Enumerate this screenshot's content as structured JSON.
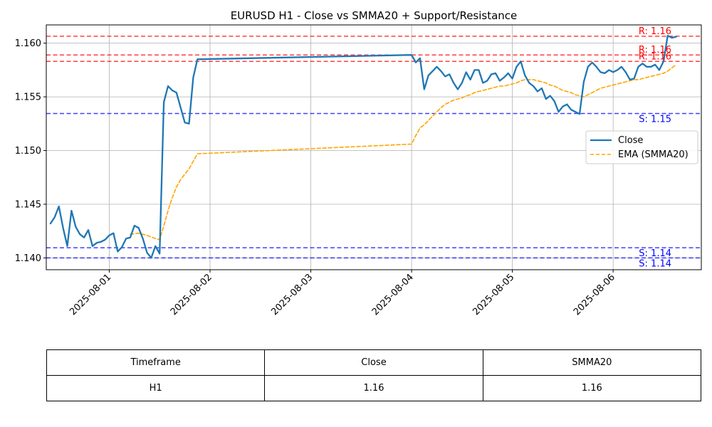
{
  "chart_data": {
    "type": "line",
    "title": "EURUSD H1 - Close vs SMMA20 + Support/Resistance",
    "xlabel": "",
    "ylabel": "",
    "x_range": [
      "2025-07-31 09:00",
      "2025-08-06 21:00"
    ],
    "ylim": [
      1.1389,
      1.1617
    ],
    "x_ticks": [
      "2025-08-01",
      "2025-08-02",
      "2025-08-03",
      "2025-08-04",
      "2025-08-05",
      "2025-08-06"
    ],
    "y_ticks": [
      "1.140",
      "1.145",
      "1.150",
      "1.155",
      "1.160"
    ],
    "grid": true,
    "legend_position": "center-right",
    "series": [
      {
        "name": "Close",
        "color": "#1f77b4",
        "style": "solid",
        "points": [
          [
            "2025-07-31 10:00",
            1.1432
          ],
          [
            "2025-07-31 11:00",
            1.1438
          ],
          [
            "2025-07-31 12:00",
            1.1448
          ],
          [
            "2025-07-31 13:00",
            1.1428
          ],
          [
            "2025-07-31 14:00",
            1.1411
          ],
          [
            "2025-07-31 15:00",
            1.1444
          ],
          [
            "2025-07-31 16:00",
            1.1429
          ],
          [
            "2025-07-31 17:00",
            1.1422
          ],
          [
            "2025-07-31 18:00",
            1.1419
          ],
          [
            "2025-07-31 19:00",
            1.1426
          ],
          [
            "2025-07-31 20:00",
            1.1411
          ],
          [
            "2025-07-31 21:00",
            1.1414
          ],
          [
            "2025-07-31 22:00",
            1.1415
          ],
          [
            "2025-07-31 23:00",
            1.1417
          ],
          [
            "2025-08-01 00:00",
            1.1421
          ],
          [
            "2025-08-01 01:00",
            1.1423
          ],
          [
            "2025-08-01 02:00",
            1.1406
          ],
          [
            "2025-08-01 03:00",
            1.141
          ],
          [
            "2025-08-01 04:00",
            1.1418
          ],
          [
            "2025-08-01 05:00",
            1.1419
          ],
          [
            "2025-08-01 06:00",
            1.143
          ],
          [
            "2025-08-01 07:00",
            1.1428
          ],
          [
            "2025-08-01 08:00",
            1.1418
          ],
          [
            "2025-08-01 09:00",
            1.1405
          ],
          [
            "2025-08-01 10:00",
            1.14
          ],
          [
            "2025-08-01 11:00",
            1.1411
          ],
          [
            "2025-08-01 12:00",
            1.1404
          ],
          [
            "2025-08-01 13:00",
            1.1545
          ],
          [
            "2025-08-01 14:00",
            1.156
          ],
          [
            "2025-08-01 15:00",
            1.1556
          ],
          [
            "2025-08-01 16:00",
            1.1554
          ],
          [
            "2025-08-01 17:00",
            1.154
          ],
          [
            "2025-08-01 18:00",
            1.1526
          ],
          [
            "2025-08-01 19:00",
            1.1525
          ],
          [
            "2025-08-01 20:00",
            1.1568
          ],
          [
            "2025-08-01 21:00",
            1.1585
          ],
          [
            "2025-08-04 00:00",
            1.1589
          ],
          [
            "2025-08-04 01:00",
            1.1582
          ],
          [
            "2025-08-04 02:00",
            1.1586
          ],
          [
            "2025-08-04 03:00",
            1.1557
          ],
          [
            "2025-08-04 04:00",
            1.157
          ],
          [
            "2025-08-04 05:00",
            1.1574
          ],
          [
            "2025-08-04 06:00",
            1.1578
          ],
          [
            "2025-08-04 07:00",
            1.1574
          ],
          [
            "2025-08-04 08:00",
            1.1569
          ],
          [
            "2025-08-04 09:00",
            1.1571
          ],
          [
            "2025-08-04 10:00",
            1.1563
          ],
          [
            "2025-08-04 11:00",
            1.1557
          ],
          [
            "2025-08-04 12:00",
            1.1563
          ],
          [
            "2025-08-04 13:00",
            1.1573
          ],
          [
            "2025-08-04 14:00",
            1.1566
          ],
          [
            "2025-08-04 15:00",
            1.1575
          ],
          [
            "2025-08-04 16:00",
            1.1575
          ],
          [
            "2025-08-04 17:00",
            1.1563
          ],
          [
            "2025-08-04 18:00",
            1.1565
          ],
          [
            "2025-08-04 19:00",
            1.1571
          ],
          [
            "2025-08-04 20:00",
            1.1572
          ],
          [
            "2025-08-04 21:00",
            1.1565
          ],
          [
            "2025-08-04 22:00",
            1.1568
          ],
          [
            "2025-08-04 23:00",
            1.1572
          ],
          [
            "2025-08-05 00:00",
            1.1567
          ],
          [
            "2025-08-05 01:00",
            1.1578
          ],
          [
            "2025-08-05 02:00",
            1.1583
          ],
          [
            "2025-08-05 03:00",
            1.157
          ],
          [
            "2025-08-05 04:00",
            1.1563
          ],
          [
            "2025-08-05 05:00",
            1.156
          ],
          [
            "2025-08-05 06:00",
            1.1555
          ],
          [
            "2025-08-05 07:00",
            1.1558
          ],
          [
            "2025-08-05 08:00",
            1.1548
          ],
          [
            "2025-08-05 09:00",
            1.1551
          ],
          [
            "2025-08-05 10:00",
            1.1546
          ],
          [
            "2025-08-05 11:00",
            1.1536
          ],
          [
            "2025-08-05 12:00",
            1.1541
          ],
          [
            "2025-08-05 13:00",
            1.1543
          ],
          [
            "2025-08-05 14:00",
            1.1538
          ],
          [
            "2025-08-05 15:00",
            1.1536
          ],
          [
            "2025-08-05 16:00",
            1.1534
          ],
          [
            "2025-08-05 17:00",
            1.1564
          ],
          [
            "2025-08-05 18:00",
            1.1578
          ],
          [
            "2025-08-05 19:00",
            1.1582
          ],
          [
            "2025-08-05 20:00",
            1.1578
          ],
          [
            "2025-08-05 21:00",
            1.1573
          ],
          [
            "2025-08-05 22:00",
            1.1572
          ],
          [
            "2025-08-05 23:00",
            1.1575
          ],
          [
            "2025-08-06 00:00",
            1.1573
          ],
          [
            "2025-08-06 01:00",
            1.1575
          ],
          [
            "2025-08-06 02:00",
            1.1578
          ],
          [
            "2025-08-06 03:00",
            1.1573
          ],
          [
            "2025-08-06 04:00",
            1.1566
          ],
          [
            "2025-08-06 05:00",
            1.1567
          ],
          [
            "2025-08-06 06:00",
            1.1578
          ],
          [
            "2025-08-06 07:00",
            1.1581
          ],
          [
            "2025-08-06 08:00",
            1.1578
          ],
          [
            "2025-08-06 09:00",
            1.1578
          ],
          [
            "2025-08-06 10:00",
            1.158
          ],
          [
            "2025-08-06 11:00",
            1.1575
          ],
          [
            "2025-08-06 12:00",
            1.1583
          ],
          [
            "2025-08-06 13:00",
            1.1607
          ],
          [
            "2025-08-06 14:00",
            1.1605
          ],
          [
            "2025-08-06 15:00",
            1.1606
          ]
        ]
      },
      {
        "name": "EMA (SMMA20)",
        "color": "#ffa500",
        "style": "dashed",
        "points": [
          [
            "2025-08-01 05:00",
            1.1422
          ],
          [
            "2025-08-01 07:00",
            1.1423
          ],
          [
            "2025-08-01 09:00",
            1.1421
          ],
          [
            "2025-08-01 11:00",
            1.1418
          ],
          [
            "2025-08-01 12:00",
            1.1417
          ],
          [
            "2025-08-01 13:00",
            1.143
          ],
          [
            "2025-08-01 14:00",
            1.1444
          ],
          [
            "2025-08-01 15:00",
            1.1456
          ],
          [
            "2025-08-01 16:00",
            1.1466
          ],
          [
            "2025-08-01 17:00",
            1.1473
          ],
          [
            "2025-08-01 18:00",
            1.1478
          ],
          [
            "2025-08-01 19:00",
            1.1483
          ],
          [
            "2025-08-01 20:00",
            1.149
          ],
          [
            "2025-08-01 21:00",
            1.1497
          ],
          [
            "2025-08-04 00:00",
            1.1506
          ],
          [
            "2025-08-04 01:00",
            1.1514
          ],
          [
            "2025-08-04 02:00",
            1.1521
          ],
          [
            "2025-08-04 03:00",
            1.1524
          ],
          [
            "2025-08-04 04:00",
            1.1528
          ],
          [
            "2025-08-04 05:00",
            1.1532
          ],
          [
            "2025-08-04 06:00",
            1.1536
          ],
          [
            "2025-08-04 07:00",
            1.154
          ],
          [
            "2025-08-04 08:00",
            1.1543
          ],
          [
            "2025-08-04 09:00",
            1.1545
          ],
          [
            "2025-08-04 10:00",
            1.1547
          ],
          [
            "2025-08-04 11:00",
            1.1548
          ],
          [
            "2025-08-04 12:00",
            1.1549
          ],
          [
            "2025-08-04 13:00",
            1.1551
          ],
          [
            "2025-08-04 14:00",
            1.1552
          ],
          [
            "2025-08-04 15:00",
            1.1554
          ],
          [
            "2025-08-04 16:00",
            1.1555
          ],
          [
            "2025-08-04 17:00",
            1.1556
          ],
          [
            "2025-08-04 18:00",
            1.1557
          ],
          [
            "2025-08-04 19:00",
            1.1558
          ],
          [
            "2025-08-04 20:00",
            1.1559
          ],
          [
            "2025-08-04 21:00",
            1.156
          ],
          [
            "2025-08-04 22:00",
            1.156
          ],
          [
            "2025-08-04 23:00",
            1.1561
          ],
          [
            "2025-08-05 00:00",
            1.1562
          ],
          [
            "2025-08-05 01:00",
            1.1563
          ],
          [
            "2025-08-05 02:00",
            1.1565
          ],
          [
            "2025-08-05 03:00",
            1.1566
          ],
          [
            "2025-08-05 04:00",
            1.1566
          ],
          [
            "2025-08-05 05:00",
            1.1566
          ],
          [
            "2025-08-05 06:00",
            1.1565
          ],
          [
            "2025-08-05 07:00",
            1.1564
          ],
          [
            "2025-08-05 08:00",
            1.1563
          ],
          [
            "2025-08-05 09:00",
            1.1561
          ],
          [
            "2025-08-05 10:00",
            1.156
          ],
          [
            "2025-08-05 11:00",
            1.1558
          ],
          [
            "2025-08-05 12:00",
            1.1556
          ],
          [
            "2025-08-05 13:00",
            1.1555
          ],
          [
            "2025-08-05 14:00",
            1.1554
          ],
          [
            "2025-08-05 15:00",
            1.1552
          ],
          [
            "2025-08-05 16:00",
            1.1551
          ],
          [
            "2025-08-05 17:00",
            1.155
          ],
          [
            "2025-08-05 18:00",
            1.1552
          ],
          [
            "2025-08-05 19:00",
            1.1554
          ],
          [
            "2025-08-05 20:00",
            1.1556
          ],
          [
            "2025-08-05 21:00",
            1.1558
          ],
          [
            "2025-08-05 22:00",
            1.1559
          ],
          [
            "2025-08-05 23:00",
            1.156
          ],
          [
            "2025-08-06 00:00",
            1.1561
          ],
          [
            "2025-08-06 01:00",
            1.1562
          ],
          [
            "2025-08-06 02:00",
            1.1563
          ],
          [
            "2025-08-06 03:00",
            1.1564
          ],
          [
            "2025-08-06 04:00",
            1.1565
          ],
          [
            "2025-08-06 05:00",
            1.1566
          ],
          [
            "2025-08-06 06:00",
            1.1566
          ],
          [
            "2025-08-06 07:00",
            1.1567
          ],
          [
            "2025-08-06 08:00",
            1.1568
          ],
          [
            "2025-08-06 09:00",
            1.1569
          ],
          [
            "2025-08-06 10:00",
            1.157
          ],
          [
            "2025-08-06 11:00",
            1.1571
          ],
          [
            "2025-08-06 12:00",
            1.1572
          ],
          [
            "2025-08-06 13:00",
            1.1574
          ],
          [
            "2025-08-06 14:00",
            1.1577
          ],
          [
            "2025-08-06 15:00",
            1.158
          ]
        ]
      }
    ],
    "levels": [
      {
        "kind": "resistance",
        "value": 1.16065,
        "label": "R: 1.16",
        "color": "#ff0000"
      },
      {
        "kind": "resistance",
        "value": 1.1589,
        "label": "R: 1.16",
        "color": "#ff0000"
      },
      {
        "kind": "resistance",
        "value": 1.1583,
        "label": "R: 1.16",
        "color": "#ff0000"
      },
      {
        "kind": "support",
        "value": 1.15345,
        "label": "S: 1.15",
        "color": "#0000ff"
      },
      {
        "kind": "support",
        "value": 1.14095,
        "label": "S: 1.14",
        "color": "#0000ff"
      },
      {
        "kind": "support",
        "value": 1.14,
        "label": "S: 1.14",
        "color": "#0000ff"
      }
    ]
  },
  "table": {
    "headers": [
      "Timeframe",
      "Close",
      "SMMA20"
    ],
    "row": [
      "H1",
      "1.16",
      "1.16"
    ]
  }
}
